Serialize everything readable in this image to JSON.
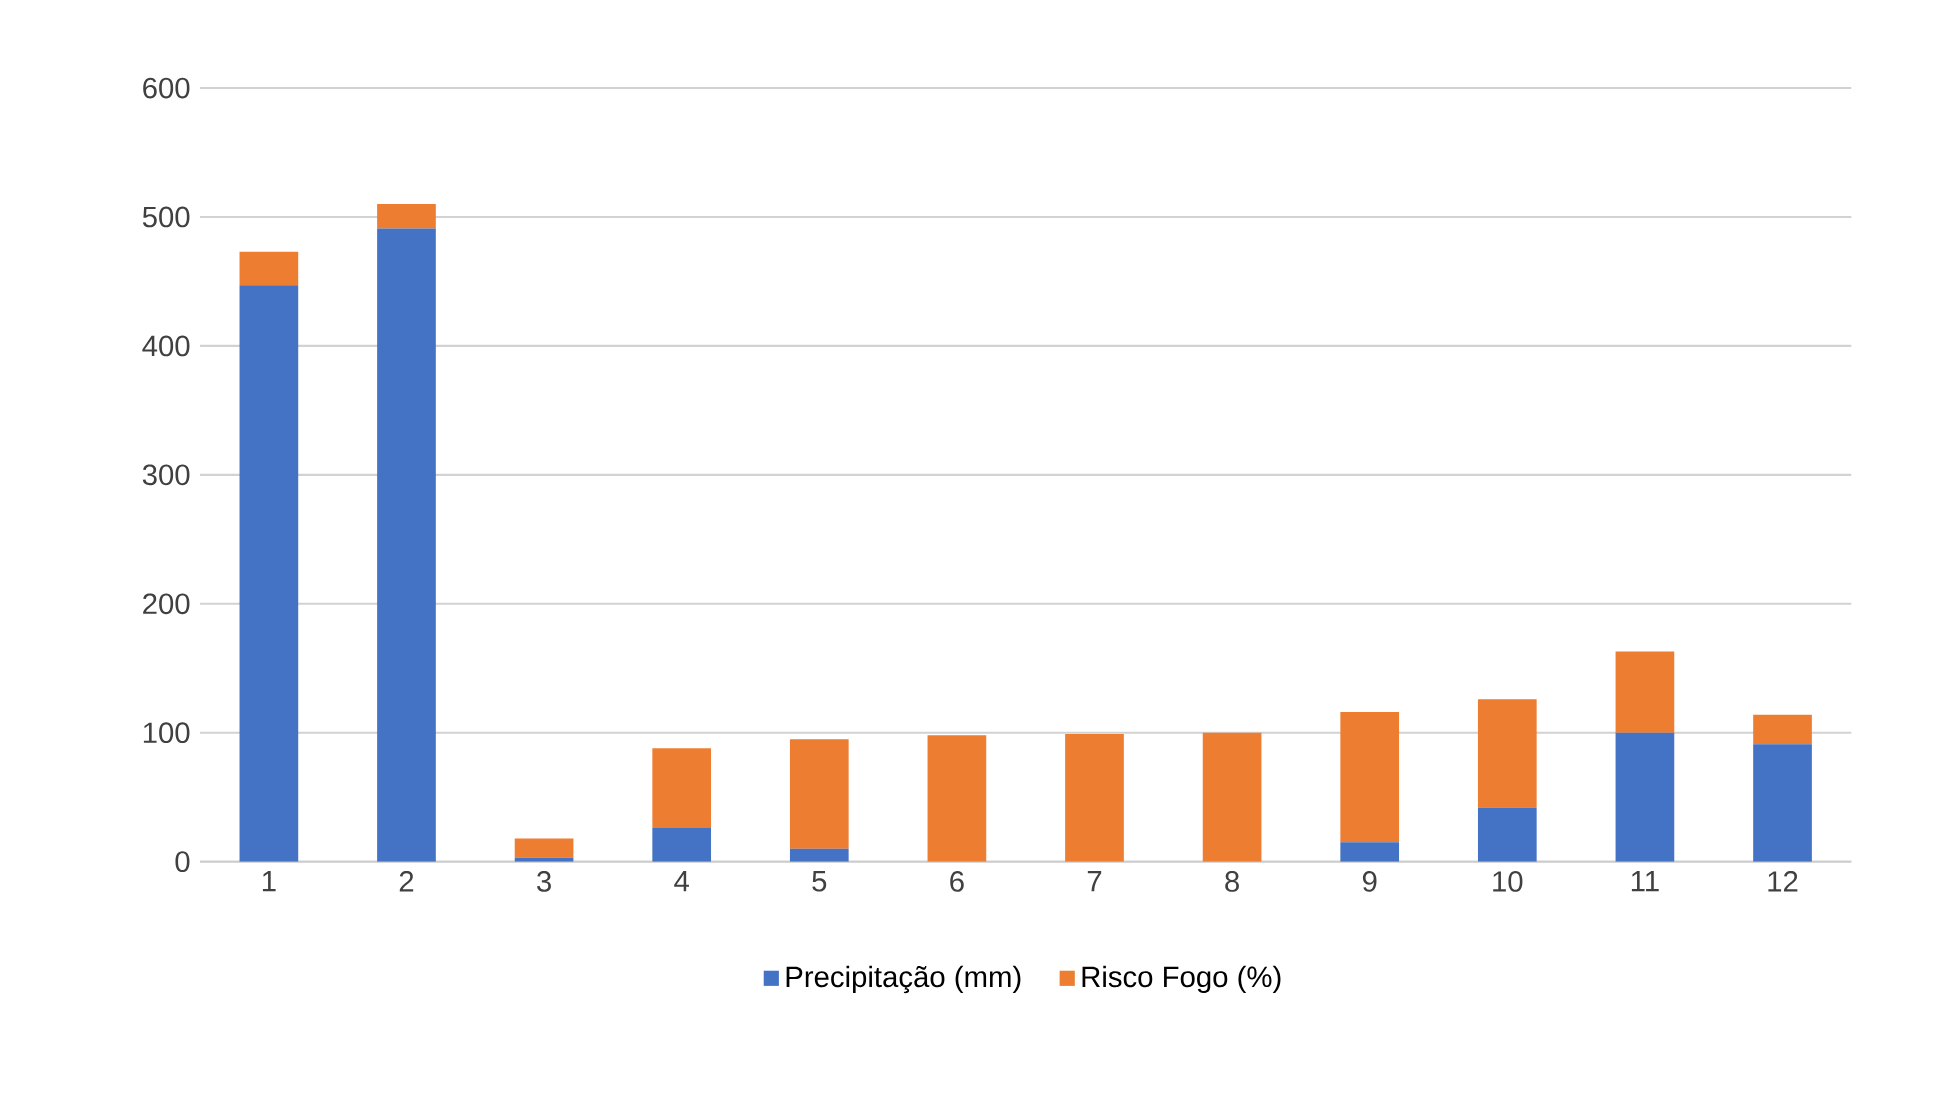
{
  "chart_data": {
    "type": "bar",
    "stacked": true,
    "categories": [
      "1",
      "2",
      "3",
      "4",
      "5",
      "6",
      "7",
      "8",
      "9",
      "10",
      "11",
      "12"
    ],
    "series": [
      {
        "name": "Precipitação (mm)",
        "color": "#4472c4",
        "values": [
          447,
          491,
          3,
          26,
          10,
          0,
          0,
          0,
          15,
          42,
          100,
          91
        ]
      },
      {
        "name": "Risco Fogo (%)",
        "color": "#ed7d31",
        "values": [
          26,
          19,
          15,
          62,
          85,
          98,
          99,
          100,
          101,
          84,
          63,
          23
        ]
      }
    ],
    "ylim": [
      0,
      600
    ],
    "yticks": [
      0,
      100,
      200,
      300,
      400,
      500,
      600
    ],
    "grid": "y",
    "legend": "bottom"
  }
}
